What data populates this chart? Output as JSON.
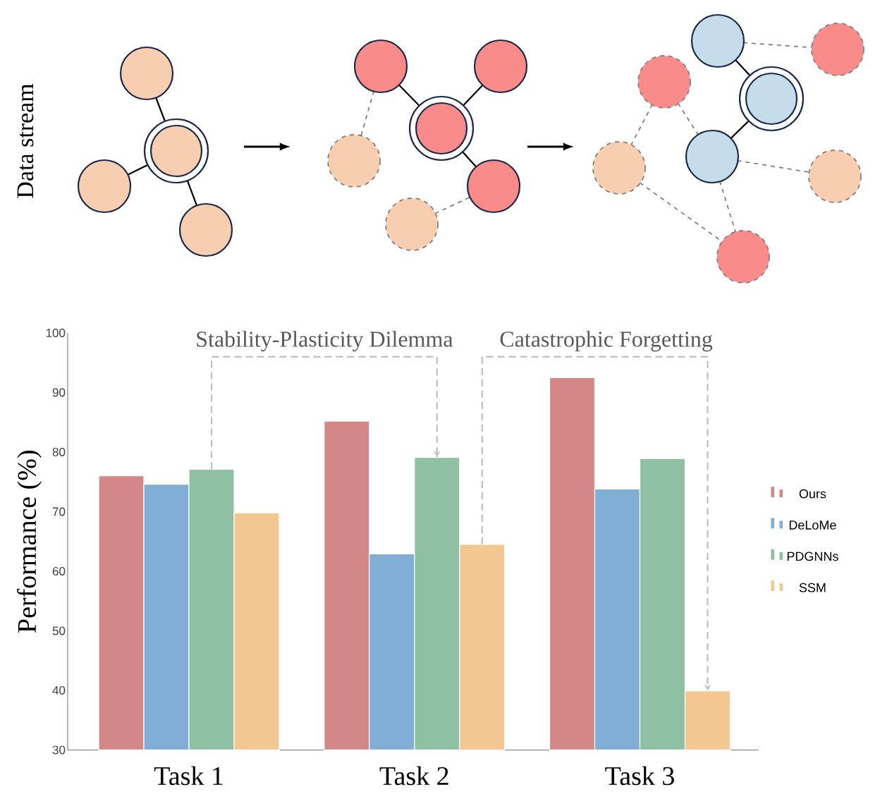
{
  "chart_data": {
    "type": "bar",
    "categories": [
      "Task 1",
      "Task 2",
      "Task 3"
    ],
    "ylabel": "Performance (%)",
    "ylim": [
      30,
      100
    ],
    "yticks": [
      30,
      40,
      50,
      60,
      70,
      80,
      90,
      100
    ],
    "legend": "right",
    "annotations": [
      "Stability-Plasticity Dilemma",
      "Catastrophic Forgetting",
      "Data stream"
    ],
    "series": [
      {
        "name": "Ours",
        "color": "#d48787",
        "values": [
          76.0,
          85.2,
          92.5
        ]
      },
      {
        "name": "DeLoMe",
        "color": "#80aed4",
        "values": [
          74.6,
          62.9,
          73.8
        ]
      },
      {
        "name": "PDGNNs",
        "color": "#8fc0a4",
        "values": [
          77.1,
          79.1,
          78.9
        ]
      },
      {
        "name": "SSM",
        "color": "#f2c792",
        "values": [
          69.8,
          64.5,
          39.9
        ]
      }
    ]
  }
}
